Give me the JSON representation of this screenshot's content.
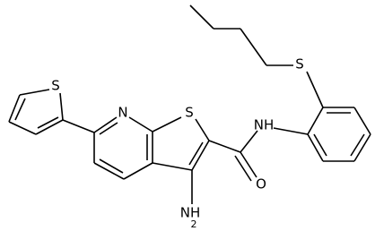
{
  "atoms": {
    "thiophene_s": "S",
    "ring_s": "S",
    "thioether_s": "S",
    "pyridine_n": "N",
    "amide_nh": "NH",
    "carbonyl_o": "O",
    "amine_nh": "NH",
    "amine_sub": "2"
  }
}
